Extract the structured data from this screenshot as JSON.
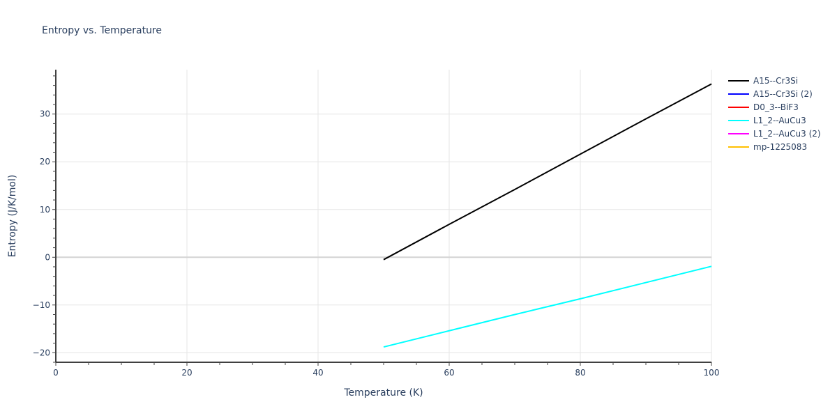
{
  "title": "Entropy vs. Temperature",
  "chart_data": {
    "type": "line",
    "title": "Entropy vs. Temperature",
    "xlabel": "Temperature (K)",
    "ylabel": "Entropy (J/K/mol)",
    "xlim": [
      0,
      100
    ],
    "ylim": [
      -22,
      39.3
    ],
    "x_ticks": [
      0,
      20,
      40,
      60,
      80,
      100
    ],
    "y_ticks": [
      -20,
      -10,
      0,
      10,
      20,
      30
    ],
    "grid": true,
    "legend_position": "right",
    "series": [
      {
        "name": "A15--Cr3Si",
        "color": "#000000",
        "x": [
          50,
          60,
          70,
          80,
          90,
          100
        ],
        "y": [
          -0.5,
          6.9,
          14.2,
          21.6,
          29.0,
          36.3
        ]
      },
      {
        "name": "A15--Cr3Si (2)",
        "color": "#0000ff",
        "x": [],
        "y": []
      },
      {
        "name": "D0_3--BiF3",
        "color": "#ff0000",
        "x": [],
        "y": []
      },
      {
        "name": "L1_2--AuCu3",
        "color": "#00ffff",
        "x": [
          50,
          60,
          70,
          80,
          90,
          100
        ],
        "y": [
          -18.8,
          -15.4,
          -12.0,
          -8.7,
          -5.3,
          -1.9
        ]
      },
      {
        "name": "L1_2--AuCu3 (2)",
        "color": "#ff00ff",
        "x": [],
        "y": []
      },
      {
        "name": "mp-1225083",
        "color": "#ffc000",
        "x": [],
        "y": []
      }
    ]
  },
  "axes": {
    "x_title": "Temperature (K)",
    "y_title": "Entropy (J/K/mol)"
  },
  "legend": {
    "items": [
      {
        "label": "A15--Cr3Si",
        "color": "#000000"
      },
      {
        "label": "A15--Cr3Si (2)",
        "color": "#0000ff"
      },
      {
        "label": "D0_3--BiF3",
        "color": "#ff0000"
      },
      {
        "label": "L1_2--AuCu3",
        "color": "#00ffff"
      },
      {
        "label": "L1_2--AuCu3 (2)",
        "color": "#ff00ff"
      },
      {
        "label": "mp-1225083",
        "color": "#ffc000"
      }
    ]
  }
}
